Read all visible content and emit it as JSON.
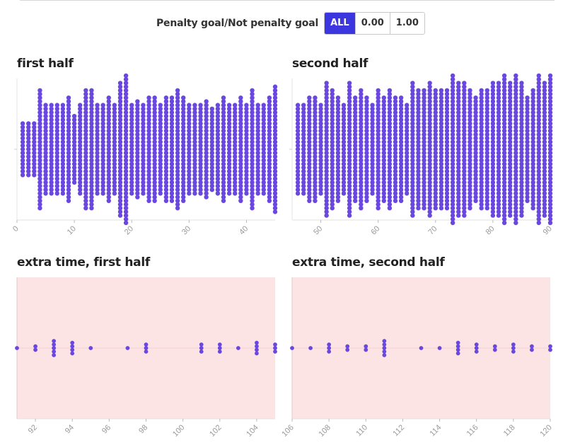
{
  "filter": {
    "label": "Penalty goal/Not penalty goal",
    "options": [
      "ALL",
      "0.00",
      "1.00"
    ],
    "selected": "ALL"
  },
  "colors": {
    "dot": "#6a48df",
    "extra_bg": "#fde4e4",
    "axis": "#bbbbbb",
    "tick_label": "#999999",
    "active_button": "#3b36e0"
  },
  "chart_data": [
    {
      "type": "scatter",
      "title": "first half",
      "subtype": "beeswarm (dot count per minute)",
      "xlim": [
        0,
        45
      ],
      "xticks": [
        0,
        10,
        20,
        30,
        40
      ],
      "x": [
        1,
        2,
        3,
        4,
        5,
        6,
        7,
        8,
        9,
        10,
        11,
        12,
        13,
        14,
        15,
        16,
        17,
        18,
        19,
        20,
        21,
        22,
        23,
        24,
        25,
        26,
        27,
        28,
        29,
        30,
        31,
        32,
        33,
        34,
        35,
        36,
        37,
        38,
        39,
        40,
        41,
        42,
        43,
        44,
        45
      ],
      "counts": [
        15,
        15,
        15,
        33,
        25,
        25,
        25,
        25,
        29,
        19,
        25,
        33,
        33,
        25,
        25,
        29,
        25,
        37,
        41,
        25,
        27,
        25,
        29,
        29,
        25,
        29,
        29,
        33,
        29,
        25,
        25,
        25,
        27,
        23,
        25,
        29,
        25,
        25,
        29,
        25,
        33,
        25,
        25,
        29,
        35
      ]
    },
    {
      "type": "scatter",
      "title": "second half",
      "subtype": "beeswarm (dot count per minute)",
      "xlim": [
        45,
        90
      ],
      "xticks": [
        50,
        60,
        70,
        80,
        90
      ],
      "x": [
        46,
        47,
        48,
        49,
        50,
        51,
        52,
        53,
        54,
        55,
        56,
        57,
        58,
        59,
        60,
        61,
        62,
        63,
        64,
        65,
        66,
        67,
        68,
        69,
        70,
        71,
        72,
        73,
        74,
        75,
        76,
        77,
        78,
        79,
        80,
        81,
        82,
        83,
        84,
        85,
        86,
        87,
        88,
        89,
        90
      ],
      "counts": [
        25,
        25,
        29,
        29,
        25,
        37,
        33,
        29,
        25,
        37,
        29,
        33,
        29,
        25,
        33,
        29,
        33,
        29,
        29,
        25,
        37,
        33,
        33,
        37,
        33,
        33,
        33,
        41,
        37,
        37,
        33,
        29,
        33,
        33,
        37,
        37,
        41,
        37,
        41,
        37,
        29,
        33,
        41,
        37,
        41
      ]
    },
    {
      "type": "scatter",
      "title": "extra time, first half",
      "subtype": "beeswarm (dot count per minute)",
      "xlim": [
        91,
        105
      ],
      "xticks": [
        92,
        94,
        96,
        98,
        100,
        102,
        104
      ],
      "x": [
        91,
        92,
        93,
        94,
        95,
        97,
        98,
        101,
        102,
        103,
        104,
        105
      ],
      "counts": [
        1,
        2,
        5,
        4,
        1,
        1,
        3,
        3,
        3,
        1,
        4,
        3
      ]
    },
    {
      "type": "scatter",
      "title": "extra time, second half",
      "subtype": "beeswarm (dot count per minute)",
      "xlim": [
        106,
        120
      ],
      "xticks": [
        106,
        108,
        110,
        112,
        114,
        116,
        118,
        120
      ],
      "x": [
        106,
        107,
        108,
        109,
        110,
        111,
        113,
        114,
        115,
        116,
        117,
        118,
        119,
        120
      ],
      "counts": [
        1,
        1,
        3,
        2,
        2,
        5,
        1,
        1,
        4,
        3,
        2,
        3,
        2,
        2
      ]
    }
  ]
}
